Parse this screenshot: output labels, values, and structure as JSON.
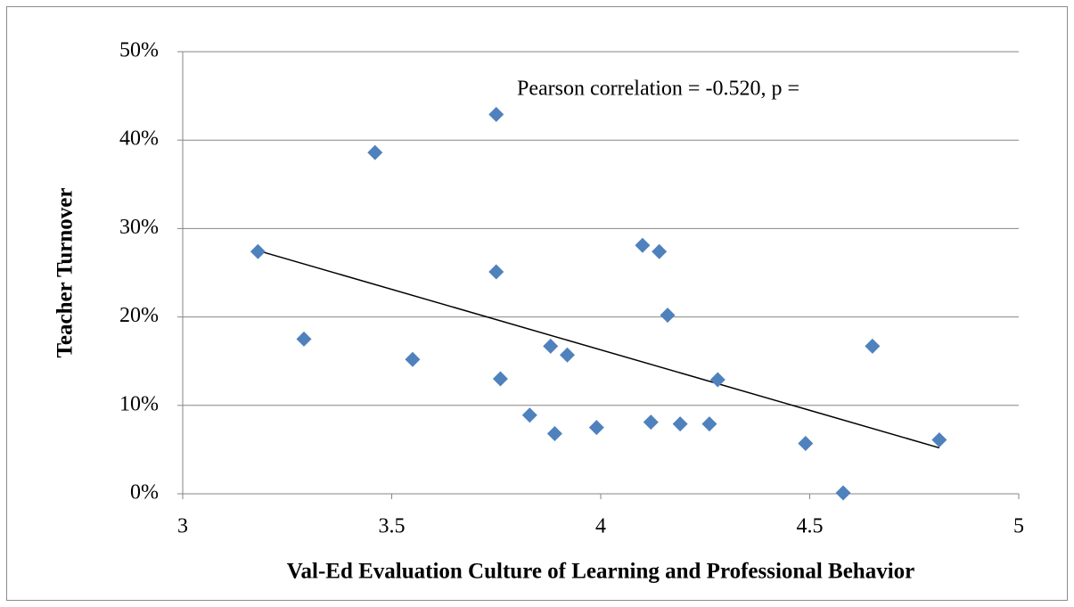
{
  "chart_data": {
    "type": "scatter",
    "xlabel": "Val-Ed Evaluation Culture of Learning and Professional Behavior",
    "ylabel": "Teacher Turnover",
    "annotation": "Pearson correlation = -0.520, p =",
    "color": "#4f81bd",
    "x": [
      3.18,
      3.29,
      3.46,
      3.55,
      3.75,
      3.75,
      3.76,
      3.83,
      3.88,
      3.89,
      3.92,
      3.99,
      4.1,
      4.12,
      4.14,
      4.16,
      4.19,
      4.26,
      4.28,
      4.49,
      4.58,
      4.65,
      4.81
    ],
    "values": [
      27.4,
      17.5,
      38.6,
      15.2,
      42.9,
      25.1,
      13.0,
      8.9,
      16.7,
      6.8,
      15.7,
      7.5,
      28.1,
      8.1,
      27.4,
      20.2,
      7.9,
      7.9,
      12.9,
      5.7,
      0.1,
      16.7,
      6.1
    ],
    "trendline": {
      "x": [
        3.18,
        4.81
      ],
      "values": [
        27.5,
        5.2
      ],
      "color": "#000000"
    },
    "xlim": [
      3,
      5
    ],
    "xticks": [
      3,
      3.5,
      4,
      4.5,
      5
    ],
    "ylim": [
      0,
      50
    ],
    "yticks": [
      {
        "value": 0,
        "label": "0%"
      },
      {
        "value": 10,
        "label": "10%"
      },
      {
        "value": 20,
        "label": "20%"
      },
      {
        "value": 30,
        "label": "30%"
      },
      {
        "value": 40,
        "label": "40%"
      },
      {
        "value": 50,
        "label": "50%"
      }
    ],
    "grid": true
  }
}
